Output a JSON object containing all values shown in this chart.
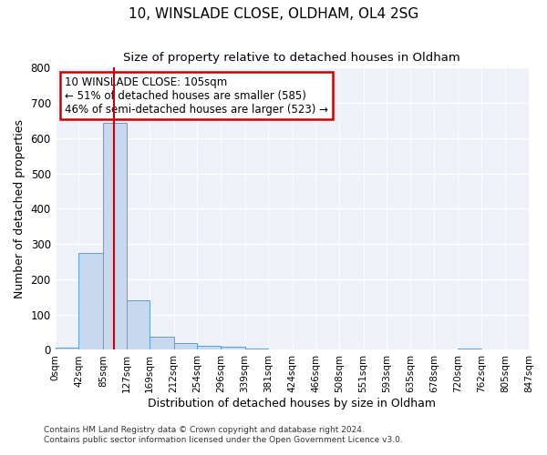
{
  "title": "10, WINSLADE CLOSE, OLDHAM, OL4 2SG",
  "subtitle": "Size of property relative to detached houses in Oldham",
  "xlabel": "Distribution of detached houses by size in Oldham",
  "ylabel": "Number of detached properties",
  "bar_color": "#c8d8ee",
  "bar_edge_color": "#5a9fd4",
  "bin_edges": [
    0,
    42,
    85,
    127,
    169,
    212,
    254,
    296,
    339,
    381,
    424,
    466,
    508,
    551,
    593,
    635,
    678,
    720,
    762,
    805,
    847
  ],
  "bin_labels": [
    "0sqm",
    "42sqm",
    "85sqm",
    "127sqm",
    "169sqm",
    "212sqm",
    "254sqm",
    "296sqm",
    "339sqm",
    "381sqm",
    "424sqm",
    "466sqm",
    "508sqm",
    "551sqm",
    "593sqm",
    "635sqm",
    "678sqm",
    "720sqm",
    "762sqm",
    "805sqm",
    "847sqm"
  ],
  "bar_heights": [
    7,
    275,
    645,
    140,
    38,
    20,
    12,
    10,
    5,
    0,
    0,
    0,
    0,
    0,
    0,
    0,
    0,
    5,
    0,
    0
  ],
  "red_line_x": 105,
  "annotation_title": "10 WINSLADE CLOSE: 105sqm",
  "annotation_line1": "← 51% of detached houses are smaller (585)",
  "annotation_line2": "46% of semi-detached houses are larger (523) →",
  "annotation_box_color": "#ffffff",
  "annotation_box_edge": "#cc0000",
  "red_line_color": "#cc0000",
  "ylim": [
    0,
    800
  ],
  "background_color": "#eef2f8",
  "grid_color": "#ffffff",
  "footer1": "Contains HM Land Registry data © Crown copyright and database right 2024.",
  "footer2": "Contains public sector information licensed under the Open Government Licence v3.0."
}
